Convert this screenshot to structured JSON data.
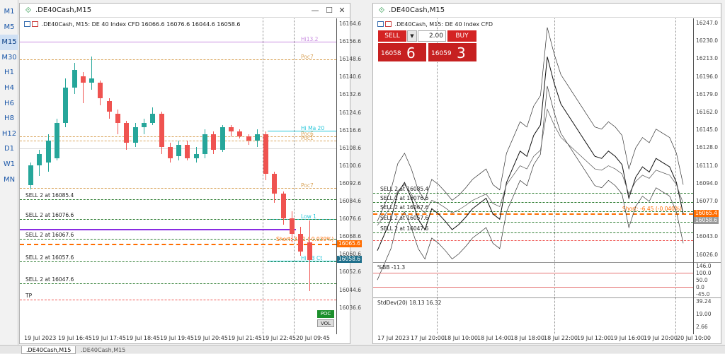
{
  "sidebar": {
    "timeframes": [
      "M1",
      "M5",
      "M15",
      "M30",
      "H1",
      "H4",
      "H6",
      "H8",
      "H12",
      "D1",
      "W1",
      "MN"
    ],
    "active": "M15"
  },
  "left": {
    "title": ".DE40Cash,M15",
    "legend": ".DE40Cash, M15:  DE 40 Index CFD   16066.6  16076.6  16044.6  16058.6",
    "price_labels": [
      "16164.6",
      "16156.6",
      "16148.6",
      "16140.6",
      "16132.6",
      "16124.6",
      "16116.6",
      "16108.6",
      "16100.6",
      "16092.6",
      "16084.6",
      "16076.6",
      "16068.6",
      "16060.6",
      "16052.6",
      "16044.6",
      "16036.6"
    ],
    "time_labels": [
      "19 Jul 2023",
      "19 Jul 16:45",
      "19 Jul 17:45",
      "19 Jul 18:45",
      "19 Jul 19:45",
      "19 Jul 20:45",
      "19 Jul 21:45",
      "19 Jul 22:45",
      "20 Jul 09:45"
    ],
    "orders": [
      "SELL 2 at 16085.4",
      "SELL 2 at 16076.6",
      "SELL 2 at 16067.6",
      "SELL 2 at 16057.6",
      "SELL 2 at 16047.6"
    ],
    "tp_label": "TP",
    "short_label": "Short: 3.81 (-0.039%)",
    "current_price": "16065.6",
    "bid_price": "16058.6",
    "level_labels": [
      "Hi13.2",
      "Poc7",
      "Hi Ma 20",
      "Poc6",
      "Poc1",
      "Poc7",
      "Low 1",
      "Hi 93 Ct"
    ],
    "poc_btn": "POC",
    "vol_btn": "VOL"
  },
  "right": {
    "title": ".DE40Cash,M15",
    "legend": ".DE40Cash, M15:  DE 40 Index CFD",
    "trade": {
      "sell": "SELL",
      "buy": "BUY",
      "volume": "2.00",
      "sell_small": "16058",
      "sell_big": "6",
      "buy_small": "16059",
      "buy_big": "3"
    },
    "price_labels": [
      "16247.0",
      "16230.0",
      "16213.0",
      "16196.0",
      "16179.0",
      "16162.0",
      "16145.0",
      "16128.0",
      "16111.0",
      "16094.0",
      "16077.0",
      "16060.0",
      "16043.0",
      "16026.0"
    ],
    "time_labels": [
      "17 Jul 2023",
      "17 Jul 20:00",
      "18 Jul 10:00",
      "18 Jul 14:00",
      "18 Jul 18:00",
      "18 Jul 22:00",
      "19 Jul 12:00",
      "19 Jul 16:00",
      "19 Jul 20:00",
      "20 Jul 10:00"
    ],
    "orders": [
      "SELL 2 at 16085.4",
      "SELL 2 at 16076.6",
      "SELL 2 at 16067.6",
      "SELL 2 at 16057.6",
      "SELL 2 at 16047.6"
    ],
    "short_label": "Short: -6.45 (-0.040%)",
    "current_price": "16065.4",
    "bid_price": "16058.6",
    "bb_label": "%BB -11.3",
    "bb_levels": [
      "146.0",
      "100.0",
      "50.0",
      "0.0",
      "-45.0"
    ],
    "sd_label": "StdDev(20) 18.13 16.32",
    "sd_levels": [
      "39.24",
      "19.00",
      "2.66"
    ]
  },
  "tabs": [
    ".DE40Cash,M15",
    ".DE40Cash,M15"
  ],
  "colors": {
    "bull": "#26a69a",
    "bear": "#ef5350",
    "order": "#2e7d32",
    "short": "#ff6d00",
    "accent": "#d42323"
  }
}
